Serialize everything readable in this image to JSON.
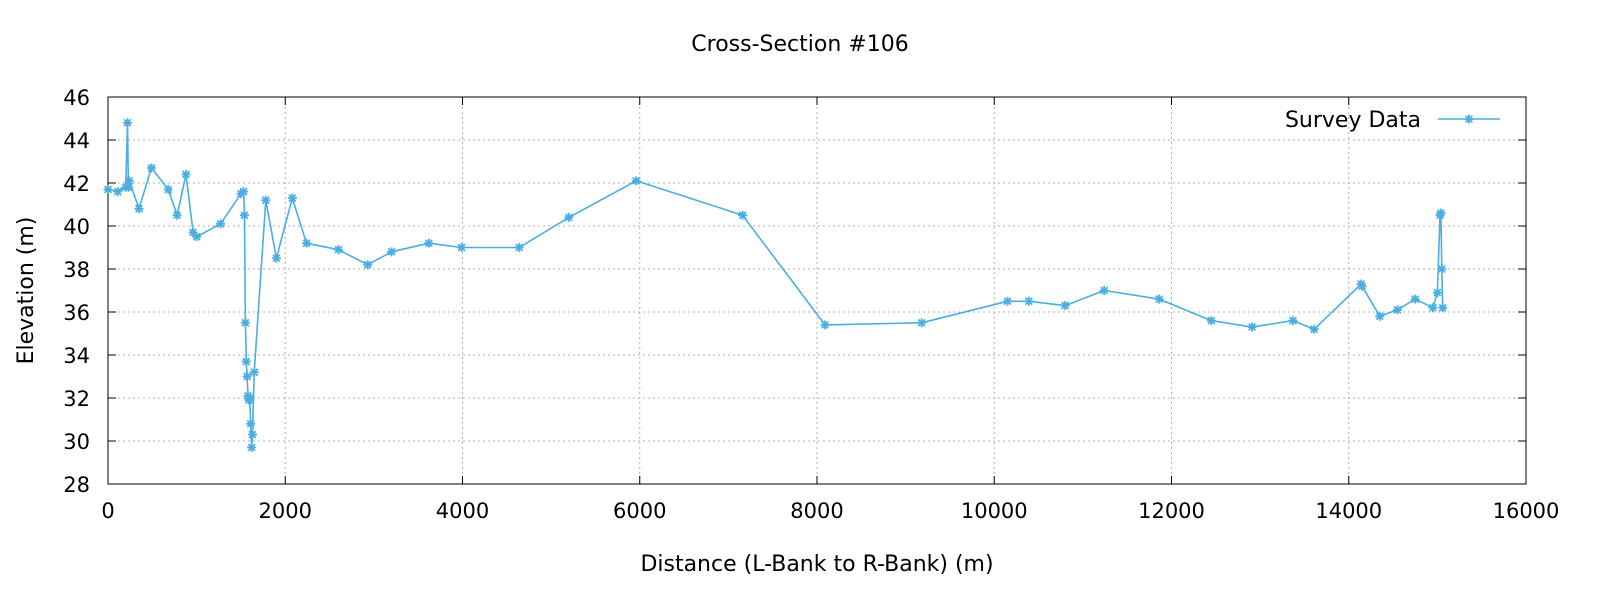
{
  "chart_data": {
    "type": "line",
    "title": "Cross-Section #106",
    "xlabel": "Distance (L-Bank to R-Bank) (m)",
    "ylabel": "Elevation (m)",
    "xlim": [
      0,
      16000
    ],
    "ylim": [
      28,
      46
    ],
    "xticks": [
      0,
      2000,
      4000,
      6000,
      8000,
      10000,
      12000,
      14000,
      16000
    ],
    "yticks": [
      28,
      30,
      32,
      34,
      36,
      38,
      40,
      42,
      44,
      46
    ],
    "grid": true,
    "legend": {
      "position": "top-right"
    },
    "colors": {
      "series": "#4aaee2",
      "grid": "#b0b0b0",
      "frame": "#000000"
    },
    "series": [
      {
        "name": "Survey Data",
        "marker": "star",
        "x": [
          0,
          110,
          200,
          220,
          230,
          240,
          350,
          490,
          680,
          780,
          880,
          960,
          1000,
          1270,
          1500,
          1530,
          1540,
          1550,
          1560,
          1570,
          1580,
          1590,
          1600,
          1610,
          1620,
          1630,
          1650,
          1780,
          1900,
          2080,
          2240,
          2600,
          2930,
          3200,
          3620,
          3990,
          4640,
          5200,
          5960,
          7160,
          8090,
          9180,
          10150,
          10390,
          10800,
          11240,
          11860,
          12450,
          12910,
          13370,
          13610,
          14140,
          14150,
          14350,
          14550,
          14750,
          14950,
          15000,
          15030,
          15040,
          15050,
          15060
        ],
        "y": [
          41.7,
          41.6,
          41.8,
          44.8,
          41.8,
          42.1,
          40.8,
          42.7,
          41.7,
          40.5,
          42.4,
          39.7,
          39.5,
          40.1,
          41.5,
          41.6,
          40.5,
          35.5,
          33.7,
          33.0,
          32.1,
          31.9,
          32.0,
          30.8,
          29.7,
          30.3,
          33.2,
          41.2,
          38.5,
          41.3,
          39.2,
          38.9,
          38.2,
          38.8,
          39.2,
          39.0,
          39.0,
          40.4,
          42.1,
          40.5,
          35.4,
          35.5,
          36.5,
          36.5,
          36.3,
          37.0,
          36.6,
          35.6,
          35.3,
          35.6,
          35.2,
          37.3,
          37.2,
          35.8,
          36.1,
          36.6,
          36.2,
          36.9,
          40.5,
          40.6,
          38.0,
          36.2
        ]
      }
    ]
  }
}
